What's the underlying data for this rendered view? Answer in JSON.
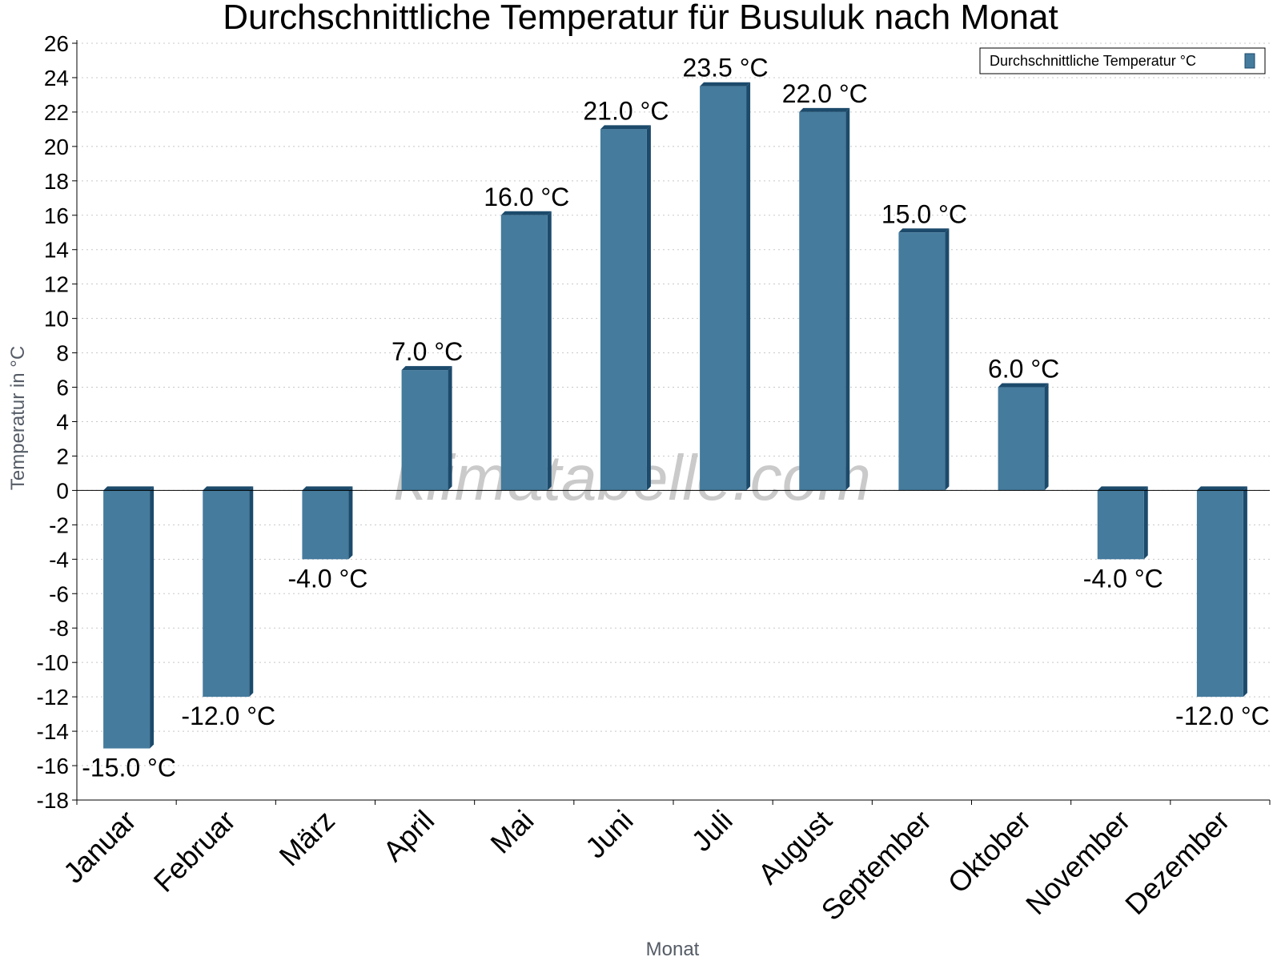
{
  "watermark": "klimatabelle.com",
  "chart_data": {
    "type": "bar",
    "title": "Durchschnittliche Temperatur für Busuluk nach Monat",
    "xlabel": "Monat",
    "ylabel": "Temperatur in °C",
    "ylim": [
      -18,
      26
    ],
    "ytick_step": 2,
    "grid": true,
    "legend_position": "top-right",
    "categories": [
      "Januar",
      "Februar",
      "März",
      "April",
      "Mai",
      "Juni",
      "Juli",
      "August",
      "September",
      "Oktober",
      "November",
      "Dezember"
    ],
    "series": [
      {
        "name": "Durchschnittliche Temperatur °C",
        "color": "#457b9d",
        "values": [
          -15.0,
          -12.0,
          -4.0,
          7.0,
          16.0,
          21.0,
          23.5,
          22.0,
          15.0,
          6.0,
          -4.0,
          -12.0
        ],
        "data_labels": [
          "-15.0 °C",
          "-12.0 °C",
          "-4.0 °C",
          "7.0 °C",
          "16.0 °C",
          "21.0 °C",
          "23.5 °C",
          "22.0 °C",
          "15.0 °C",
          "6.0 °C",
          "-4.0 °C",
          "-12.0 °C"
        ]
      }
    ]
  }
}
